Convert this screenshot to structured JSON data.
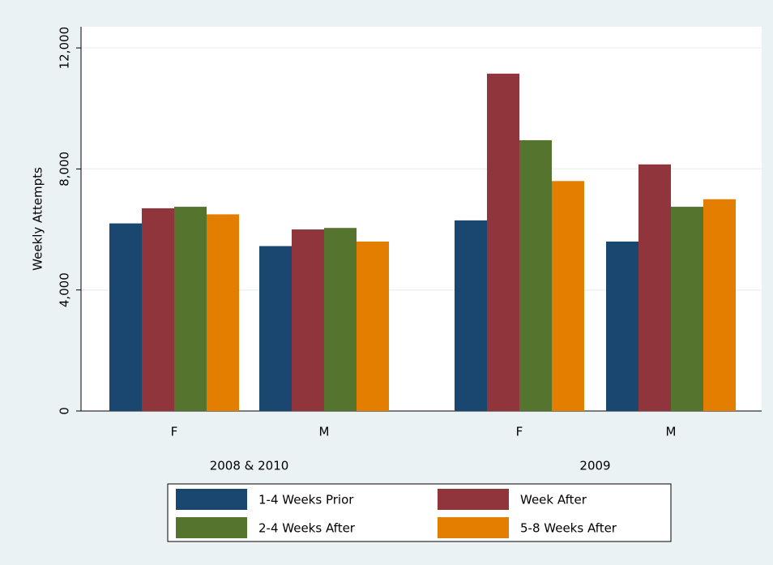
{
  "chart_data": {
    "type": "bar",
    "y_label": "Weekly Attempts",
    "groups": [
      {
        "name": "2008 & 2010",
        "categories": [
          "F",
          "M"
        ]
      },
      {
        "name": "2009",
        "categories": [
          "F",
          "M"
        ]
      }
    ],
    "series": [
      {
        "name": "1-4 Weeks Prior",
        "color": "#1a476f",
        "values": [
          6200,
          5450,
          6300,
          5600
        ]
      },
      {
        "name": "Week After",
        "color": "#90353b",
        "values": [
          6700,
          6000,
          11150,
          8150
        ]
      },
      {
        "name": "2-4 Weeks After",
        "color": "#55752f",
        "values": [
          6750,
          6050,
          8950,
          6750
        ]
      },
      {
        "name": "5-8 Weeks After",
        "color": "#e37e00",
        "values": [
          6500,
          5600,
          7600,
          7000
        ]
      }
    ],
    "ylim": [
      0,
      12700
    ],
    "yticks": [
      0,
      {
        "value": 4000,
        "label": "4,000"
      },
      {
        "value": 8000,
        "label": "8,000"
      },
      {
        "value": 12000,
        "label": "12,000"
      }
    ],
    "grid": true,
    "legend": "bottom"
  }
}
